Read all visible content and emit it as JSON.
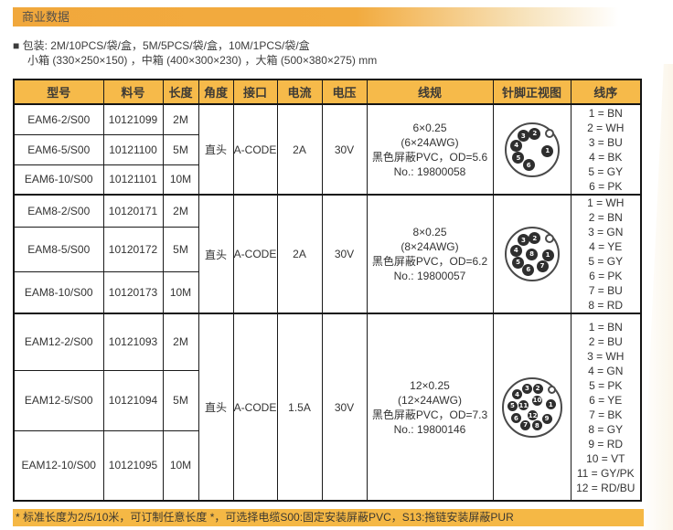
{
  "colors": {
    "bar_orange": "#F1A83C",
    "header_fill": "#F6BA4A",
    "footnote_fill": "#F5B845",
    "border": "#1A1A1A",
    "pin_fill": "#2E2E2E"
  },
  "header": {
    "section_title": "商业数据"
  },
  "packaging": {
    "line1": "■ 包装: 2M/10PCS/袋/盒，5M/5PCS/袋/盒，10M/1PCS/袋/盒",
    "line2": "小箱 (330×250×150) ，中箱 (400×300×230) ，大箱 (500×380×275) mm"
  },
  "footnote": "* 标准长度为2/5/10米，可订制任意长度 *，可选择电缆S00:固定安装屏蔽PVC，S13:拖链安装屏蔽PUR",
  "table": {
    "headers": [
      "型号",
      "料号",
      "长度",
      "角度",
      "接口",
      "电流",
      "电压",
      "线规",
      "针脚正视图",
      "线序"
    ],
    "groups": [
      {
        "rows": [
          {
            "model": "EAM6-2/S00",
            "part_no": "10121099",
            "length": "2M"
          },
          {
            "model": "EAM6-5/S00",
            "part_no": "10121100",
            "length": "5M"
          },
          {
            "model": "EAM6-10/S00",
            "part_no": "10121101",
            "length": "10M"
          }
        ],
        "angle": "直头",
        "interface": "A-CODE",
        "current": "2A",
        "voltage": "30V",
        "wire_spec": [
          "6×0.25",
          "(6×24AWG)",
          "黑色屏蔽PVC，OD=5.6",
          "No.: 19800058"
        ],
        "connector": {
          "size": 56,
          "pin_d": 13,
          "notch_d": 10,
          "notch": {
            "a": 42,
            "r": 0.93
          },
          "pins": [
            {
              "n": "1",
              "a": -6,
              "r": 0.62
            },
            {
              "n": "2",
              "a": 79,
              "r": 0.62
            },
            {
              "n": "3",
              "a": 122,
              "r": 0.62
            },
            {
              "n": "4",
              "a": 166,
              "r": 0.62
            },
            {
              "n": "5",
              "a": 213,
              "r": 0.62
            },
            {
              "n": "6",
              "a": 259,
              "r": 0.62
            }
          ]
        },
        "wire_order": [
          "1 = BN",
          "2 = WH",
          "3 = BU",
          "4 = BK",
          "5 = GY",
          "6 = PK"
        ]
      },
      {
        "rows": [
          {
            "model": "EAM8-2/S00",
            "part_no": "10120171",
            "length": "2M"
          },
          {
            "model": "EAM8-5/S00",
            "part_no": "10120172",
            "length": "5M"
          },
          {
            "model": "EAM8-10/S00",
            "part_no": "10120173",
            "length": "10M"
          }
        ],
        "angle": "直头",
        "interface": "A-CODE",
        "current": "2A",
        "voltage": "30V",
        "wire_spec": [
          "8×0.25",
          "(8×24AWG)",
          "黑色屏蔽PVC，OD=6.2",
          "No.: 19800057"
        ],
        "connector": {
          "size": 56,
          "pin_d": 13,
          "notch_d": 10,
          "notch": {
            "a": 42,
            "r": 0.93
          },
          "pins": [
            {
              "n": "1",
              "a": -4,
              "r": 0.63
            },
            {
              "n": "2",
              "a": 79,
              "r": 0.63
            },
            {
              "n": "3",
              "a": 121,
              "r": 0.63
            },
            {
              "n": "4",
              "a": 167,
              "r": 0.63
            },
            {
              "n": "5",
              "a": 212,
              "r": 0.63
            },
            {
              "n": "6",
              "a": 258,
              "r": 0.63
            },
            {
              "n": "7",
              "a": 311,
              "r": 0.63
            },
            {
              "n": "8",
              "a": 0,
              "r": 0
            }
          ]
        },
        "wire_order": [
          "1 = WH",
          "2 = BN",
          "3 = GN",
          "4 = YE",
          "5 = GY",
          "6 = PK",
          "7 = BU",
          "8 = RD"
        ]
      },
      {
        "rows": [
          {
            "model": "EAM12-2/S00",
            "part_no": "10121093",
            "length": "2M"
          },
          {
            "model": "EAM12-5/S00",
            "part_no": "10121094",
            "length": "5M"
          },
          {
            "model": "EAM12-10/S00",
            "part_no": "10121095",
            "length": "10M"
          }
        ],
        "angle": "直头",
        "interface": "A-CODE",
        "current": "1.5A",
        "voltage": "30V",
        "wire_spec": [
          "12×0.25",
          "(12×24AWG)",
          "黑色屏蔽PVC，OD=7.3",
          "No.: 19800146"
        ],
        "connector": {
          "size": 62,
          "pin_d": 11,
          "notch_d": 9,
          "notch": {
            "a": 42,
            "r": 0.94
          },
          "pins": [
            {
              "n": "1",
              "a": 8,
              "r": 0.68
            },
            {
              "n": "2",
              "a": 72,
              "r": 0.68
            },
            {
              "n": "3",
              "a": 104,
              "r": 0.68
            },
            {
              "n": "4",
              "a": 139,
              "r": 0.68
            },
            {
              "n": "5",
              "a": 176,
              "r": 0.68
            },
            {
              "n": "6",
              "a": 216,
              "r": 0.68
            },
            {
              "n": "7",
              "a": 251,
              "r": 0.68
            },
            {
              "n": "8",
              "a": 286,
              "r": 0.68
            },
            {
              "n": "9",
              "a": 322,
              "r": 0.68
            },
            {
              "n": "10",
              "a": 50,
              "r": 0.3
            },
            {
              "n": "11",
              "a": 168,
              "r": 0.3
            },
            {
              "n": "12",
              "a": 277,
              "r": 0.3
            }
          ]
        },
        "wire_order": [
          "1 = BN",
          "2 = BU",
          "3 = WH",
          "4 = GN",
          "5 = PK",
          "6 = YE",
          "7 = BK",
          "8 = GY",
          "9 = RD",
          "10 = VT",
          "11 = GY/PK",
          "12 = RD/BU"
        ]
      }
    ]
  }
}
